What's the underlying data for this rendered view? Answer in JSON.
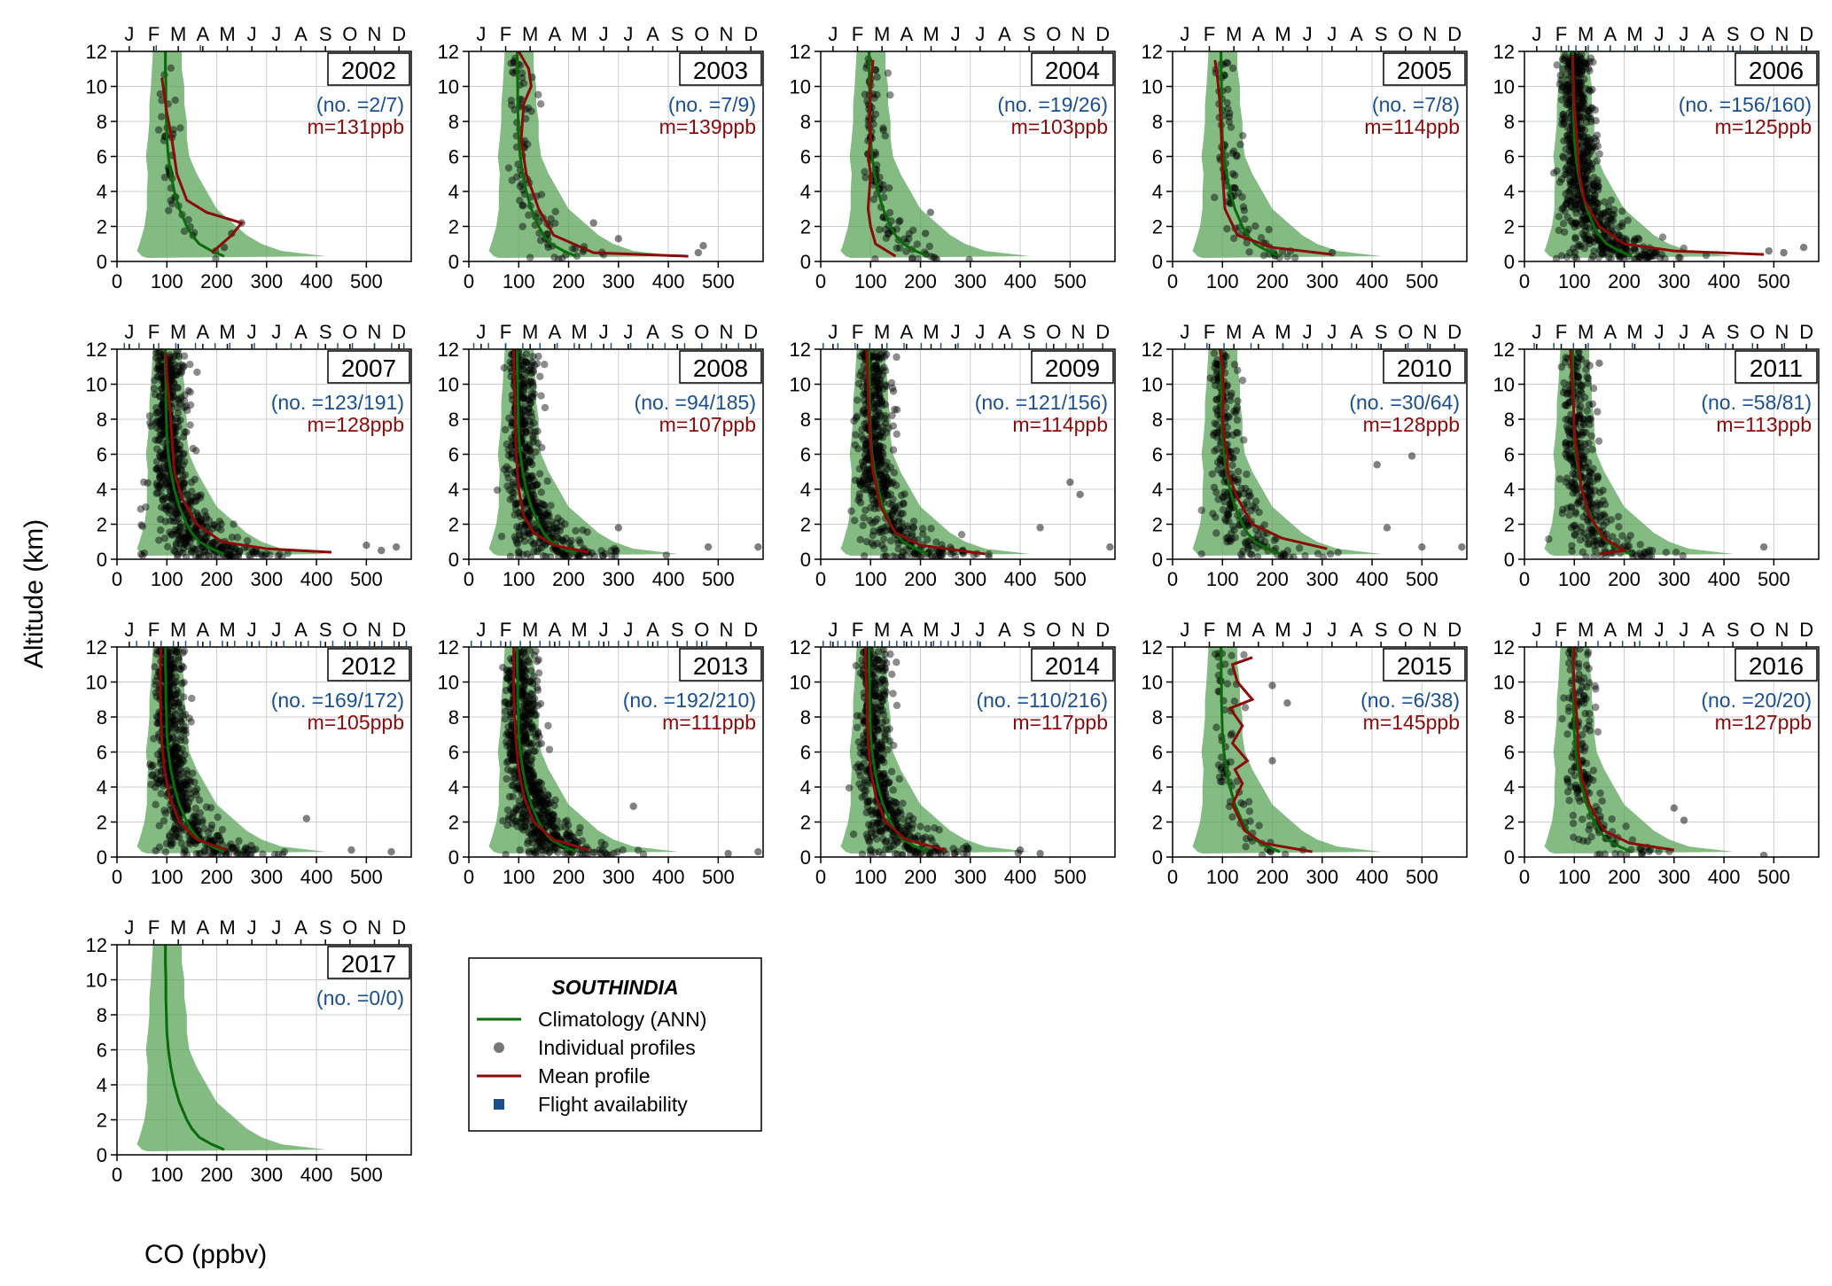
{
  "figure": {
    "ylabel": "Altitude (km)",
    "xlabel": "CO (ppbv)"
  },
  "axes": {
    "x_ticks": [
      0,
      100,
      200,
      300,
      400,
      500
    ],
    "xlim": [
      0,
      590
    ],
    "y_ticks": [
      0,
      2,
      4,
      6,
      8,
      10,
      12
    ],
    "ylim": [
      0,
      12
    ],
    "months": [
      "J",
      "F",
      "M",
      "A",
      "M",
      "J",
      "J",
      "A",
      "S",
      "O",
      "N",
      "D"
    ],
    "grid": true
  },
  "legend": {
    "title": "SOUTHINDIA",
    "items": [
      {
        "label": "Climatology (ANN)",
        "kind": "line",
        "color": "#0a6b0a"
      },
      {
        "label": "Individual profiles",
        "kind": "dot",
        "color": "#777777"
      },
      {
        "label": "Mean profile",
        "kind": "line",
        "color": "#8b0a0a"
      },
      {
        "label": "Flight availability",
        "kind": "square",
        "color": "#1a4f8f"
      }
    ]
  },
  "colors": {
    "climatology_line": "#0a6b0a",
    "climatology_band": "#5aa45a",
    "mean_line": "#8b0a0a",
    "points": "#000000",
    "count_text": "#1a4f8f",
    "mean_text": "#8b0a0a",
    "flight_ticks": "#1a4f8f"
  },
  "chart_data": {
    "type": "scatter",
    "climatology": {
      "altitude_km": [
        0.3,
        0.6,
        1.0,
        1.5,
        2.0,
        3.0,
        4.0,
        5.0,
        6.0,
        7.0,
        8.0,
        9.0,
        10.0,
        11.0,
        12.0
      ],
      "co_ppbv": [
        215,
        190,
        165,
        150,
        140,
        125,
        115,
        108,
        103,
        100,
        99,
        98,
        98,
        97,
        97
      ],
      "band_low": [
        50,
        40,
        45,
        50,
        55,
        60,
        60,
        62,
        58,
        62,
        65,
        65,
        68,
        70,
        72
      ],
      "band_high": [
        420,
        330,
        290,
        260,
        240,
        200,
        180,
        160,
        145,
        140,
        140,
        135,
        135,
        130,
        130
      ]
    },
    "panels": [
      {
        "year": "2002",
        "count": "(no. =2/7)",
        "mean": "m=131ppb",
        "flights": [
          1.6,
          3.4
        ],
        "mean_profile": {
          "co_ppbv": [
            190,
            230,
            250,
            180,
            140,
            120,
            110,
            100,
            95,
            90
          ],
          "altitude_km": [
            0.5,
            1.5,
            2.2,
            2.8,
            3.5,
            5,
            7,
            8.5,
            9.5,
            10.5
          ]
        }
      },
      {
        "year": "2003",
        "count": "(no. =7/9)",
        "mean": "m=139ppb",
        "flights": [],
        "mean_profile": {
          "co_ppbv": [
            440,
            250,
            170,
            140,
            115,
            105,
            110,
            125,
            120,
            100
          ],
          "altitude_km": [
            0.3,
            0.5,
            1.5,
            3,
            5,
            7,
            9,
            10,
            11,
            12
          ]
        }
      },
      {
        "year": "2004",
        "count": "(no. =19/26)",
        "mean": "m=103ppb",
        "flights": [],
        "mean_profile": {
          "co_ppbv": [
            150,
            110,
            100,
            95,
            100,
            95,
            100,
            98,
            100,
            105
          ],
          "altitude_km": [
            0.3,
            1,
            2,
            3,
            5,
            6,
            7,
            8,
            10,
            11.5
          ]
        }
      },
      {
        "year": "2005",
        "count": "(no. =7/8)",
        "mean": "m=114ppb",
        "flights": [],
        "mean_profile": {
          "co_ppbv": [
            320,
            200,
            130,
            105,
            100,
            98,
            95,
            90,
            85
          ],
          "altitude_km": [
            0.4,
            0.8,
            1.5,
            3,
            5,
            7,
            9,
            10.5,
            11.5
          ]
        }
      },
      {
        "year": "2006",
        "count": "(no. =156/160)",
        "mean": "m=125ppb",
        "flights": [
          1.3,
          1.8,
          2.1,
          2.6,
          3.0,
          3.5,
          4.1,
          4.6,
          5.3,
          5.9,
          6.4,
          7.1,
          7.6,
          8.3,
          8.8,
          9.4,
          10.1,
          10.7,
          11.3
        ],
        "mean_profile": {
          "co_ppbv": [
            480,
            300,
            200,
            150,
            120,
            110,
            105,
            100,
            98,
            97
          ],
          "altitude_km": [
            0.4,
            0.6,
            1,
            2,
            3.5,
            5,
            7,
            9,
            10.5,
            11.8
          ]
        }
      },
      {
        "year": "2007",
        "count": "(no. =123/191)",
        "mean": "m=128ppb",
        "flights": [
          0.3,
          0.9,
          1.7,
          2.4,
          3.2,
          4.0,
          4.6,
          5.6,
          6.5,
          7.1,
          8.2,
          9.0,
          9.6,
          10.5,
          11.2,
          11.7
        ],
        "mean_profile": {
          "co_ppbv": [
            430,
            300,
            210,
            160,
            130,
            115,
            110,
            105,
            100,
            98
          ],
          "altitude_km": [
            0.4,
            0.6,
            1,
            2,
            3.5,
            5,
            7,
            9,
            10.5,
            11.8
          ]
        }
      },
      {
        "year": "2008",
        "count": "(no. =94/185)",
        "mean": "m=107ppb",
        "flights": [
          0.2,
          0.8,
          1.5,
          2.2,
          2.9,
          3.6,
          4.3,
          5.0,
          5.8,
          6.6,
          7.3,
          8.0,
          8.8,
          9.5,
          10.3,
          11.0,
          11.7
        ],
        "mean_profile": {
          "co_ppbv": [
            240,
            170,
            130,
            110,
            100,
            95,
            93,
            92,
            90,
            90
          ],
          "altitude_km": [
            0.4,
            0.8,
            1.5,
            2.5,
            4,
            6,
            8,
            9.5,
            11,
            12
          ]
        }
      },
      {
        "year": "2009",
        "count": "(no. =121/156)",
        "mean": "m=114ppb",
        "flights": [
          0.1,
          0.7,
          1.4,
          2.0,
          2.7,
          3.4,
          4.1,
          4.9,
          5.6,
          6.3,
          7.0,
          7.8,
          8.5,
          9.2,
          10.0,
          10.7,
          11.5
        ],
        "mean_profile": {
          "co_ppbv": [
            330,
            200,
            150,
            120,
            105,
            100,
            97,
            95,
            93,
            92
          ],
          "altitude_km": [
            0.3,
            0.8,
            1.5,
            3,
            5,
            6.5,
            8,
            9.5,
            11,
            12
          ]
        }
      },
      {
        "year": "2010",
        "count": "(no. =30/64)",
        "mean": "m=128ppb",
        "flights": [
          0.5,
          1.4,
          2.1,
          3.2,
          4.5,
          5.3,
          6.1,
          7.3,
          8.4,
          9.6,
          10.4
        ],
        "mean_profile": {
          "co_ppbv": [
            310,
            220,
            160,
            130,
            110,
            110,
            105,
            100,
            102,
            100,
            95
          ],
          "altitude_km": [
            0.6,
            1.2,
            2,
            3.5,
            5,
            6,
            6.5,
            8,
            9.5,
            11,
            12
          ]
        }
      },
      {
        "year": "2011",
        "count": "(no. =58/81)",
        "mean": "m=113ppb",
        "flights": [
          0.4,
          1.2,
          2.0,
          2.6,
          3.5,
          4.4,
          5.5,
          6.3,
          7.4,
          8.2,
          9.3,
          10.6
        ],
        "mean_profile": {
          "co_ppbv": [
            150,
            200,
            160,
            130,
            115,
            105,
            100,
            98,
            95,
            92
          ],
          "altitude_km": [
            0.3,
            0.5,
            1.2,
            2.5,
            4,
            6,
            7.5,
            9,
            10.5,
            12
          ]
        }
      },
      {
        "year": "2012",
        "count": "(no. =169/172)",
        "mean": "m=105ppb",
        "flights": [
          0.8,
          1.3,
          1.8,
          2.3,
          2.8,
          3.3,
          3.8,
          4.3,
          4.8,
          5.3,
          5.8,
          6.3,
          6.8,
          7.3,
          7.8,
          8.3,
          8.8,
          9.3,
          9.8,
          10.3,
          10.8,
          11.3,
          11.8
        ],
        "mean_profile": {
          "co_ppbv": [
            220,
            160,
            125,
            105,
            95,
            90,
            88,
            87,
            87,
            88
          ],
          "altitude_km": [
            0.4,
            1,
            2,
            3.5,
            5,
            6.5,
            8,
            9.5,
            11,
            12
          ]
        }
      },
      {
        "year": "2013",
        "count": "(no. =192/210)",
        "mean": "m=111ppb",
        "flights": [
          0.1,
          0.5,
          0.9,
          1.3,
          1.7,
          2.1,
          2.5,
          2.9,
          3.3,
          3.7,
          4.1,
          4.5,
          4.9,
          5.3,
          5.7,
          6.1,
          6.5,
          6.9,
          7.3,
          7.7,
          8.1,
          8.5,
          8.9,
          9.3,
          9.7
        ],
        "mean_profile": {
          "co_ppbv": [
            240,
            170,
            130,
            110,
            100,
            95,
            92,
            90,
            90,
            90
          ],
          "altitude_km": [
            0.4,
            1,
            2,
            3.5,
            5,
            6.5,
            8,
            9.5,
            11,
            12
          ]
        }
      },
      {
        "year": "2014",
        "count": "(no. =110/216)",
        "mean": "m=117ppb",
        "flights": [
          0.1,
          0.4,
          0.7,
          1.0,
          1.3,
          1.6,
          1.9,
          2.2,
          2.5,
          2.8,
          3.1,
          3.4,
          3.7,
          4.0,
          4.3,
          4.6,
          4.9,
          5.2,
          5.5,
          5.8,
          6.1,
          6.4
        ],
        "mean_profile": {
          "co_ppbv": [
            250,
            170,
            130,
            110,
            100,
            95,
            93,
            92,
            90,
            90
          ],
          "altitude_km": [
            0.4,
            1,
            2,
            3.5,
            5,
            6.5,
            8,
            9.5,
            11,
            12
          ]
        }
      },
      {
        "year": "2015",
        "count": "(no. =6/38)",
        "mean": "m=145ppb",
        "flights": [],
        "mean_profile": {
          "co_ppbv": [
            280,
            180,
            145,
            120,
            140,
            125,
            150,
            120,
            140,
            115,
            160,
            130,
            120,
            160
          ],
          "altitude_km": [
            0.3,
            0.8,
            1.5,
            3,
            4.2,
            5,
            5.5,
            6.5,
            7.5,
            8.5,
            9,
            10,
            11,
            11.4
          ]
        }
      },
      {
        "year": "2016",
        "count": "(no. =20/20)",
        "mean": "m=127ppb",
        "flights": [
          0.5,
          1.3,
          2.2,
          3.0,
          4.0,
          4.7,
          5.8,
          6.5
        ],
        "mean_profile": {
          "co_ppbv": [
            300,
            210,
            160,
            130,
            115,
            108,
            105,
            100,
            98,
            100
          ],
          "altitude_km": [
            0.4,
            0.8,
            1.5,
            3,
            4.5,
            6,
            8,
            9.5,
            11,
            12
          ]
        }
      },
      {
        "year": "2017",
        "count": "(no. =0/0)",
        "mean": "",
        "flights": [],
        "mean_profile": {
          "co_ppbv": [],
          "altitude_km": []
        }
      }
    ],
    "profile_clouds": {
      "2002": {
        "n": 40,
        "spread": 0.6,
        "outliers": [
          [
            250,
            2.2
          ],
          [
            215,
            0.8
          ],
          [
            230,
            1.6
          ]
        ]
      },
      "2003": {
        "n": 90,
        "spread": 0.9,
        "outliers": [
          [
            470,
            0.9
          ],
          [
            460,
            0.5
          ],
          [
            250,
            2.2
          ],
          [
            300,
            1.3
          ]
        ]
      },
      "2004": {
        "n": 110,
        "spread": 0.6,
        "outliers": [
          [
            220,
            2.8
          ],
          [
            210,
            1.6
          ]
        ]
      },
      "2005": {
        "n": 90,
        "spread": 0.6,
        "outliers": [
          [
            320,
            0.5
          ]
        ]
      },
      "2006": {
        "n": 700,
        "spread": 1.4,
        "outliers": [
          [
            560,
            0.8
          ],
          [
            520,
            0.5
          ],
          [
            490,
            0.6
          ]
        ]
      },
      "2007": {
        "n": 650,
        "spread": 1.4,
        "outliers": [
          [
            560,
            0.7
          ],
          [
            530,
            0.5
          ],
          [
            500,
            0.8
          ]
        ]
      },
      "2008": {
        "n": 520,
        "spread": 1.2,
        "outliers": [
          [
            480,
            0.7
          ],
          [
            580,
            0.7
          ],
          [
            300,
            1.8
          ]
        ]
      },
      "2009": {
        "n": 520,
        "spread": 1.3,
        "outliers": [
          [
            500,
            4.4
          ],
          [
            520,
            3.7
          ],
          [
            440,
            1.8
          ],
          [
            580,
            0.7
          ]
        ]
      },
      "2010": {
        "n": 260,
        "spread": 1.2,
        "outliers": [
          [
            480,
            5.9
          ],
          [
            430,
            1.8
          ],
          [
            500,
            0.7
          ],
          [
            580,
            0.7
          ],
          [
            410,
            5.4
          ]
        ]
      },
      "2011": {
        "n": 360,
        "spread": 1.2,
        "outliers": [
          [
            480,
            0.7
          ],
          [
            150,
            11.2
          ]
        ]
      },
      "2012": {
        "n": 620,
        "spread": 1.2,
        "outliers": [
          [
            550,
            0.3
          ],
          [
            380,
            2.2
          ],
          [
            470,
            0.4
          ]
        ]
      },
      "2013": {
        "n": 680,
        "spread": 1.2,
        "outliers": [
          [
            580,
            0.3
          ],
          [
            330,
            2.9
          ],
          [
            520,
            0.2
          ]
        ]
      },
      "2014": {
        "n": 540,
        "spread": 1.2,
        "outliers": [
          [
            440,
            0.2
          ],
          [
            400,
            0.4
          ]
        ]
      },
      "2015": {
        "n": 70,
        "spread": 0.9,
        "outliers": [
          [
            200,
            9.8
          ],
          [
            230,
            8.8
          ],
          [
            200,
            5.5
          ]
        ]
      },
      "2016": {
        "n": 180,
        "spread": 1.0,
        "outliers": [
          [
            480,
            0.1
          ],
          [
            300,
            2.8
          ],
          [
            320,
            2.1
          ]
        ]
      },
      "2017": {
        "n": 0,
        "spread": 0,
        "outliers": []
      }
    }
  }
}
